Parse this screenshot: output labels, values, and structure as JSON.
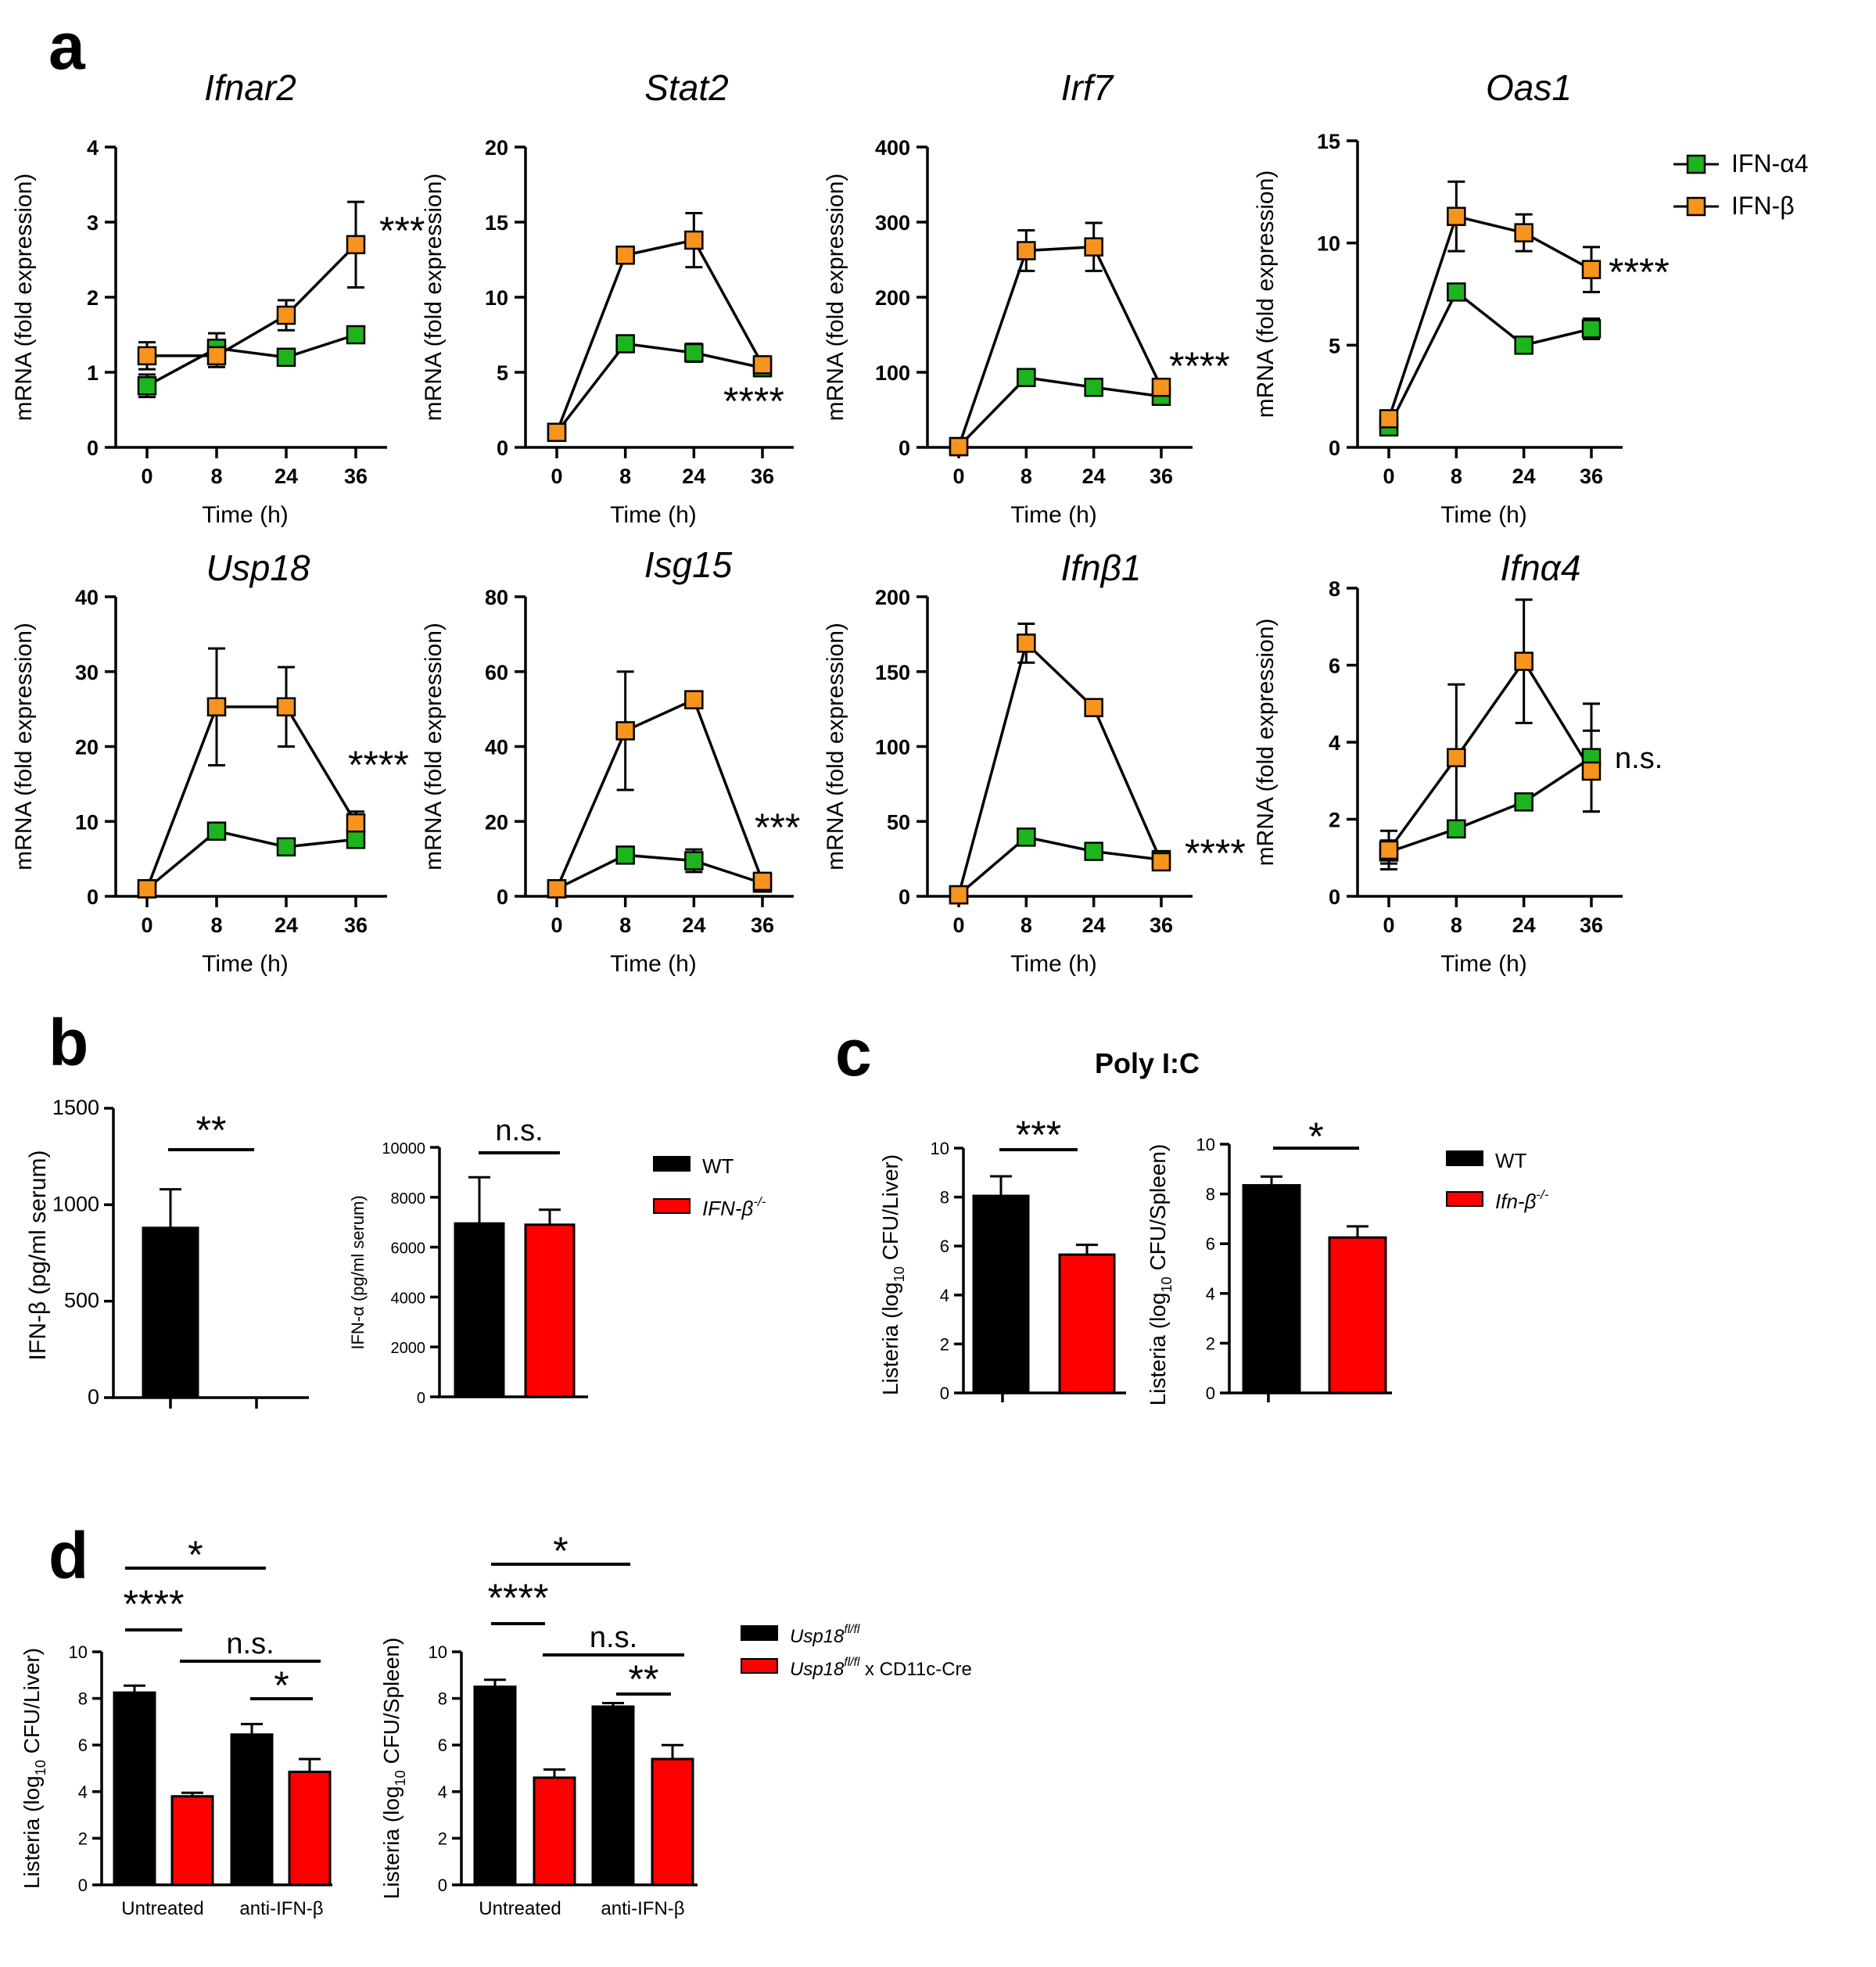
{
  "panel_letters": {
    "a": "a",
    "b": "b",
    "c": "c",
    "d": "d"
  },
  "panel_a": {
    "legend": [
      {
        "name": "IFN-α4",
        "color": "#1db41d"
      },
      {
        "name": "IFN-β",
        "color": "#f7941d"
      }
    ]
  },
  "panel_b": {
    "legend": [
      {
        "name": "WT",
        "color": "#000000"
      },
      {
        "name": "IFN-β",
        "sup": "-/-",
        "color": "#ff0000"
      }
    ]
  },
  "panel_c": {
    "title": "Poly I:C",
    "legend": [
      {
        "name": "WT",
        "color": "#000000"
      },
      {
        "name": "Ifn-β",
        "sup": "-/-",
        "color": "#ff0000"
      }
    ]
  },
  "panel_d": {
    "legend": [
      {
        "name": "Usp18",
        "sup": "fl/fl",
        "suffix": "",
        "color": "#000000"
      },
      {
        "name": "Usp18",
        "sup": "fl/fl",
        "suffix": " x CD11c-Cre",
        "color": "#ff0000"
      }
    ]
  },
  "chart_data": [
    {
      "type": "line",
      "title": "Ifnar2",
      "xlabel": "Time (h)",
      "ylabel": "mRNA (fold expression)",
      "x": [
        "0",
        "8",
        "24",
        "36"
      ],
      "ylim": [
        0,
        4
      ],
      "yticks": [
        0,
        1,
        2,
        3,
        4
      ],
      "series": [
        {
          "name": "IFN-α4",
          "values": [
            0.82,
            1.32,
            1.2,
            1.5
          ],
          "err": [
            0.15,
            0.2,
            0.05,
            0.05
          ]
        },
        {
          "name": "IFN-β",
          "values": [
            1.22,
            1.22,
            1.76,
            2.7
          ],
          "err": [
            0.18,
            0.15,
            0.2,
            0.57
          ]
        }
      ],
      "annotation": "***"
    },
    {
      "type": "line",
      "title": "Stat2",
      "xlabel": "Time (h)",
      "ylabel": "mRNA (fold expression)",
      "x": [
        "0",
        "8",
        "24",
        "36"
      ],
      "ylim": [
        0,
        20
      ],
      "yticks": [
        0,
        5,
        10,
        15,
        20
      ],
      "series": [
        {
          "name": "IFN-α4",
          "values": [
            1.0,
            6.9,
            6.3,
            5.3
          ],
          "err": [
            0.2,
            0.3,
            0.6,
            0.3
          ]
        },
        {
          "name": "IFN-β",
          "values": [
            1.0,
            12.8,
            13.8,
            5.5
          ],
          "err": [
            0.2,
            0.3,
            1.8,
            0.5
          ]
        }
      ],
      "annotation": "****"
    },
    {
      "type": "line",
      "title": "Irf7",
      "xlabel": "Time (h)",
      "ylabel": "mRNA (fold expression)",
      "x": [
        "0",
        "8",
        "24",
        "36"
      ],
      "ylim": [
        0,
        400
      ],
      "yticks": [
        0,
        100,
        200,
        300,
        400
      ],
      "series": [
        {
          "name": "IFN-α4",
          "values": [
            1,
            93,
            80,
            68
          ],
          "err": [
            2,
            6,
            6,
            5
          ]
        },
        {
          "name": "IFN-β",
          "values": [
            1,
            262,
            267,
            80
          ],
          "err": [
            2,
            27,
            32,
            8
          ]
        }
      ],
      "annotation": "****"
    },
    {
      "type": "line",
      "title": "Oas1",
      "xlabel": "Time (h)",
      "ylabel": "mRNA (fold expression)",
      "x": [
        "0",
        "8",
        "24",
        "36"
      ],
      "ylim": [
        0,
        15
      ],
      "yticks": [
        0,
        5,
        10,
        15
      ],
      "series": [
        {
          "name": "IFN-α4",
          "values": [
            1.0,
            7.6,
            5.0,
            5.8
          ],
          "err": [
            0.2,
            0.3,
            0.4,
            0.5
          ]
        },
        {
          "name": "IFN-β",
          "values": [
            1.4,
            11.3,
            10.5,
            8.7
          ],
          "err": [
            0.2,
            1.7,
            0.9,
            1.1
          ]
        }
      ],
      "annotation": "****"
    },
    {
      "type": "line",
      "title": "Usp18",
      "xlabel": "Time (h)",
      "ylabel": "mRNA (fold expression)",
      "x": [
        "0",
        "8",
        "24",
        "36"
      ],
      "ylim": [
        0,
        40
      ],
      "yticks": [
        0,
        10,
        20,
        30,
        40
      ],
      "series": [
        {
          "name": "IFN-α4",
          "values": [
            1.0,
            8.7,
            6.6,
            7.6
          ],
          "err": [
            0.3,
            0.5,
            0.8,
            0.8
          ]
        },
        {
          "name": "IFN-β",
          "values": [
            1.0,
            25.3,
            25.3,
            9.8
          ],
          "err": [
            0.5,
            7.8,
            5.3,
            1.5
          ]
        }
      ],
      "annotation": "****"
    },
    {
      "type": "line",
      "title": "Isg15",
      "xlabel": "Time (h)",
      "ylabel": "mRNA (fold expression)",
      "x": [
        "0",
        "8",
        "24",
        "36"
      ],
      "ylim": [
        0,
        80
      ],
      "yticks": [
        0,
        20,
        40,
        60,
        80
      ],
      "series": [
        {
          "name": "IFN-α4",
          "values": [
            2,
            11,
            9.5,
            3.5
          ],
          "err": [
            0.5,
            2,
            3,
            1
          ]
        },
        {
          "name": "IFN-β",
          "values": [
            2,
            44.2,
            52.5,
            4
          ],
          "err": [
            0.5,
            15.8,
            1.2,
            1
          ]
        }
      ],
      "annotation": "***"
    },
    {
      "type": "line",
      "title": "Ifnβ1",
      "xlabel": "Time (h)",
      "ylabel": "mRNA (fold expression)",
      "x": [
        "0",
        "8",
        "24",
        "36"
      ],
      "ylim": [
        0,
        200
      ],
      "yticks": [
        0,
        50,
        100,
        150,
        200
      ],
      "series": [
        {
          "name": "IFN-α4",
          "values": [
            1,
            39.5,
            30,
            24.5
          ],
          "err": [
            1,
            2,
            2,
            2
          ]
        },
        {
          "name": "IFN-β",
          "values": [
            1,
            169,
            126,
            23
          ],
          "err": [
            1,
            13,
            2,
            2
          ]
        }
      ],
      "annotation": "****"
    },
    {
      "type": "line",
      "title": "Ifnα4",
      "xlabel": "Time (h)",
      "ylabel": "mRNA (fold expression)",
      "x": [
        "0",
        "8",
        "24",
        "36"
      ],
      "ylim": [
        0,
        8
      ],
      "yticks": [
        0,
        2,
        4,
        6,
        8
      ],
      "series": [
        {
          "name": "IFN-α4",
          "values": [
            1.15,
            1.75,
            2.45,
            3.6
          ],
          "err": [
            0.3,
            0.2,
            0.1,
            1.4
          ]
        },
        {
          "name": "IFN-β",
          "values": [
            1.2,
            3.6,
            6.1,
            3.25
          ],
          "err": [
            0.5,
            1.9,
            1.6,
            1.05
          ]
        }
      ],
      "annotation": "n.s."
    },
    {
      "type": "bar",
      "ylabel": "IFN-β (pg/ml serum)",
      "categories": [
        "WT",
        "IFN-β-/-"
      ],
      "values": [
        880,
        0
      ],
      "err": [
        200,
        0
      ],
      "ylim": [
        0,
        1500
      ],
      "yticks": [
        0,
        500,
        1000,
        1500
      ],
      "annotation": "**"
    },
    {
      "type": "bar",
      "ylabel": "IFN-α (pg/ml serum)",
      "categories": [
        "WT",
        "IFN-β-/-"
      ],
      "values": [
        6950,
        6900
      ],
      "err": [
        1850,
        600
      ],
      "ylim": [
        0,
        10000
      ],
      "yticks": [
        0,
        2000,
        4000,
        6000,
        8000,
        10000
      ],
      "annotation": "n.s."
    },
    {
      "type": "bar",
      "title": "Poly I:C",
      "ylabel": "Listeria (log10 CFU/Liver)",
      "categories": [
        "WT",
        "Ifn-β-/-"
      ],
      "values": [
        8.05,
        5.65
      ],
      "err": [
        0.8,
        0.4
      ],
      "ylim": [
        0,
        10
      ],
      "yticks": [
        0,
        2,
        4,
        6,
        8,
        10
      ],
      "annotation": "***"
    },
    {
      "type": "bar",
      "title": "Poly I:C",
      "ylabel": "Listeria (log10 CFU/Spleen)",
      "categories": [
        "WT",
        "Ifn-β-/-"
      ],
      "values": [
        8.35,
        6.25
      ],
      "err": [
        0.35,
        0.45
      ],
      "ylim": [
        0,
        10
      ],
      "yticks": [
        0,
        2,
        4,
        6,
        8,
        10
      ],
      "annotation": "*"
    },
    {
      "type": "bar",
      "ylabel": "Listeria (log10 CFU/Liver)",
      "groups": [
        "Untreated",
        "anti-IFN-β"
      ],
      "series": [
        {
          "name": "Usp18fl/fl",
          "values": [
            8.25,
            6.45
          ],
          "err": [
            0.3,
            0.45
          ]
        },
        {
          "name": "Usp18fl/fl x CD11c-Cre",
          "values": [
            3.8,
            4.85
          ],
          "err": [
            0.15,
            0.55
          ]
        }
      ],
      "ylim": [
        0,
        10
      ],
      "yticks": [
        0,
        2,
        4,
        6,
        8,
        10
      ],
      "annotations": [
        "*",
        "****",
        "n.s.",
        "*"
      ]
    },
    {
      "type": "bar",
      "ylabel": "Listeria (log10 CFU/Spleen)",
      "groups": [
        "Untreated",
        "anti-IFN-β"
      ],
      "series": [
        {
          "name": "Usp18fl/fl",
          "values": [
            8.5,
            7.65
          ],
          "err": [
            0.3,
            0.15
          ]
        },
        {
          "name": "Usp18fl/fl x CD11c-Cre",
          "values": [
            4.6,
            5.4
          ],
          "err": [
            0.35,
            0.6
          ]
        }
      ],
      "ylim": [
        0,
        10
      ],
      "yticks": [
        0,
        2,
        4,
        6,
        8,
        10
      ],
      "annotations": [
        "*",
        "****",
        "n.s.",
        "**"
      ]
    }
  ]
}
